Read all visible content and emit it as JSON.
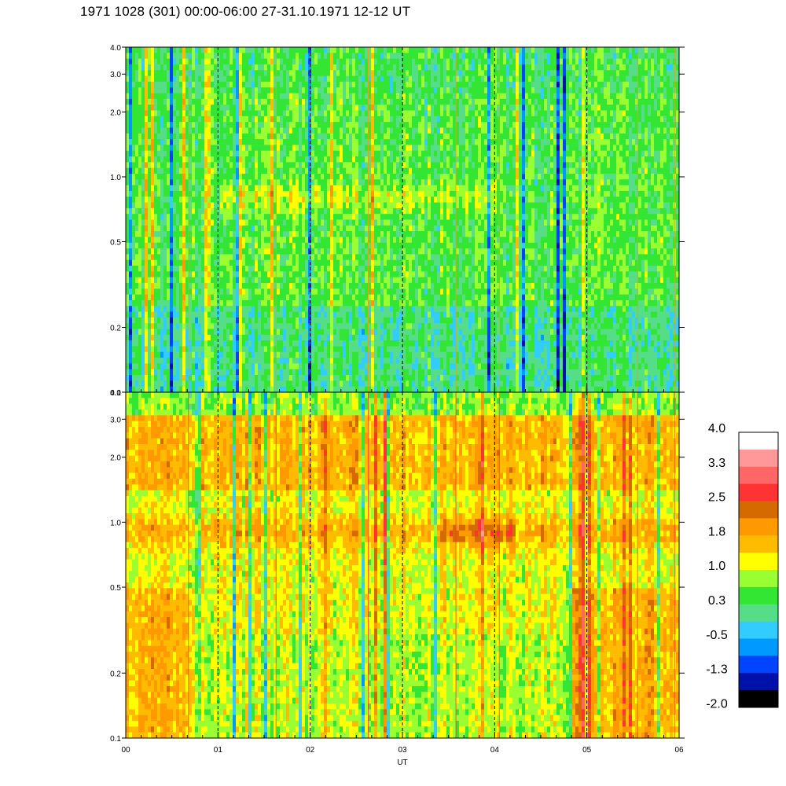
{
  "title": "1971 1028 (301) 00:00-06:00 27-31.10.1971  12-12 UT",
  "chart_data": [
    {
      "type": "heatmap",
      "panel": "top",
      "y_scale": "log",
      "ylim": [
        0.1,
        4.0
      ],
      "y_ticks": [
        "0.1",
        "0.2",
        "0.5",
        "1.0",
        "2.0",
        "3.0",
        "4.0"
      ],
      "xlim": [
        0,
        6
      ],
      "x_ticks": [
        "00",
        "01",
        "02",
        "03",
        "04",
        "05",
        "06"
      ],
      "grid": "dashed vertical lines at each hour",
      "description_of_values": "dominant levels 0.3 to 1.0 (greens/cyan), enhanced band near 0.8 between 01 and 04"
    },
    {
      "type": "heatmap",
      "panel": "bottom",
      "y_scale": "log",
      "ylim": [
        0.1,
        4.0
      ],
      "y_ticks": [
        "0.1",
        "0.2",
        "0.5",
        "1.0",
        "2.0",
        "3.0",
        "4.0"
      ],
      "xlim": [
        0,
        6
      ],
      "x_ticks": [
        "00",
        "01",
        "02",
        "03",
        "04",
        "05",
        "06"
      ],
      "xlabel": "UT",
      "grid": "dashed vertical lines at each hour",
      "description_of_values": "dominant levels 1.0 to 1.8 (yellow/orange), band near 0.9 reaching 2.2 around 03:30-04:00"
    }
  ],
  "colorbar": {
    "labels": [
      "4.0",
      "3.3",
      "2.5",
      "1.8",
      "1.0",
      "0.3",
      "-0.5",
      "-1.3",
      "-2.0"
    ],
    "colors": [
      "#ffffff",
      "#ff9999",
      "#ff6666",
      "#ff3333",
      "#d46a00",
      "#ff9900",
      "#ffbb00",
      "#ffff00",
      "#99ff33",
      "#33e633",
      "#55dd88",
      "#33ccff",
      "#0099ff",
      "#0044ff",
      "#0011aa",
      "#000000"
    ]
  }
}
